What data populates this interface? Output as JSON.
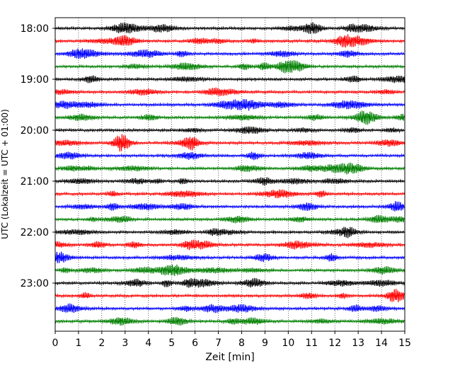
{
  "chart_data": {
    "type": "line",
    "subtype": "helicorder",
    "xlabel": "Zeit  [min]",
    "ylabel": "UTC (Lokalzeit = UTC + 01:00)",
    "xlim": [
      0,
      15
    ],
    "x_ticks": [
      "0",
      "1",
      "2",
      "3",
      "4",
      "5",
      "6",
      "7",
      "8",
      "9",
      "10",
      "11",
      "12",
      "13",
      "14",
      "15"
    ],
    "y_ticks": [
      "18:00",
      "19:00",
      "20:00",
      "21:00",
      "22:00",
      "23:00"
    ],
    "vertical_grid": "dotted",
    "trace_count": 24,
    "trace_colors": [
      "#000000",
      "#ff0000",
      "#0000ff",
      "#007f00"
    ],
    "trace_start": "18:00",
    "trace_interval_min": 15
  }
}
